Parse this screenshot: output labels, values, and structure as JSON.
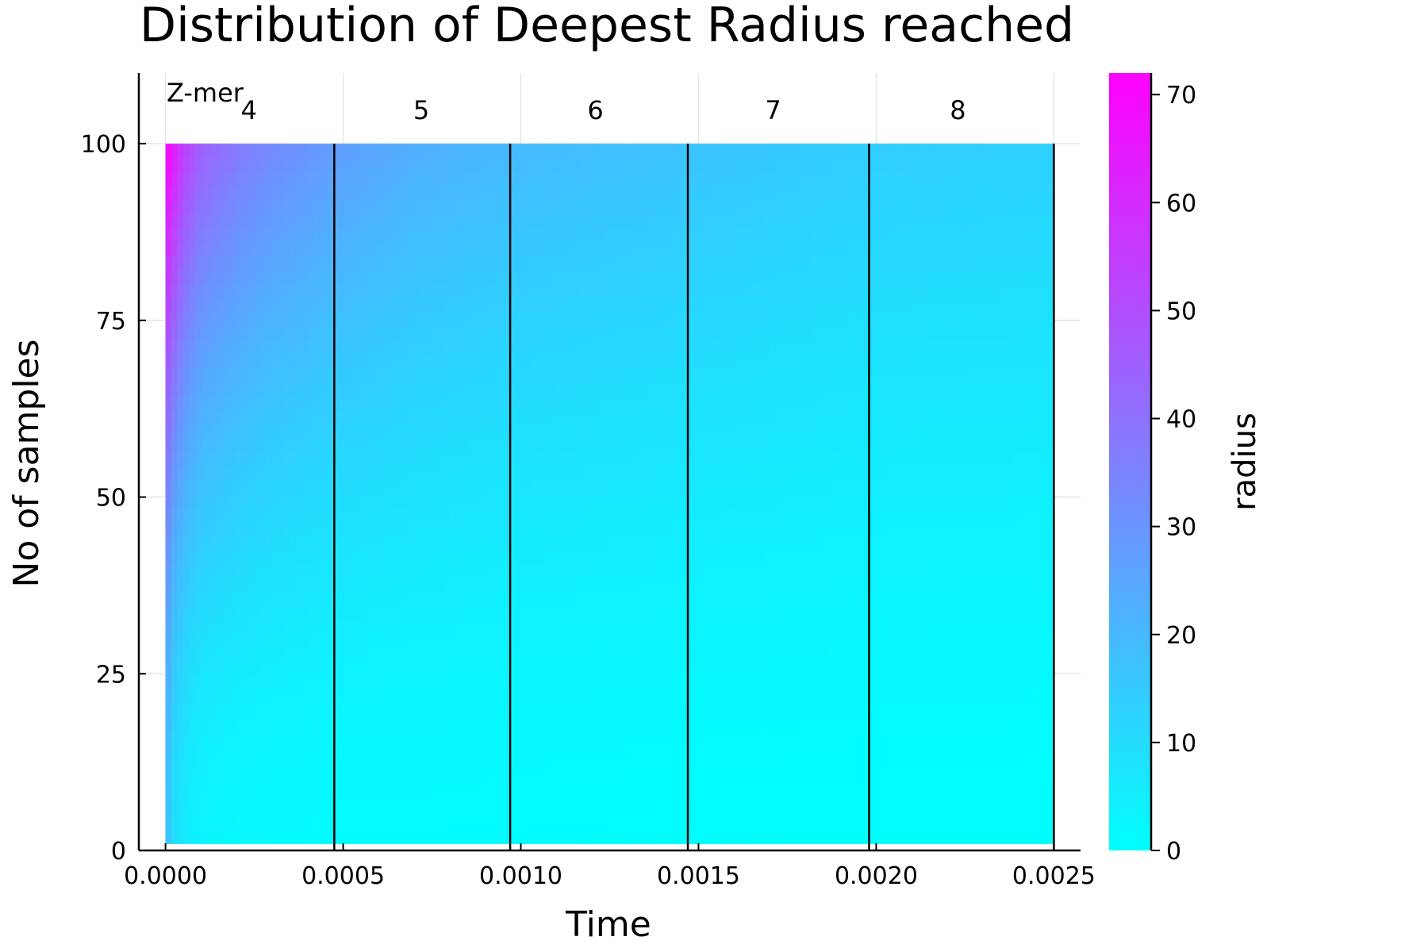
{
  "chart_data": {
    "type": "heatmap",
    "title": "Distribution of Deepest Radius reached",
    "xlabel": "Time",
    "ylabel": "No of samples",
    "xlim": [
      -7.5e-05,
      0.002575
    ],
    "ylim": [
      0,
      110
    ],
    "x_ticks": [
      0.0,
      0.0005,
      0.001,
      0.0015,
      0.002,
      0.0025
    ],
    "x_tick_labels": [
      "0.0000",
      "0.0005",
      "0.0010",
      "0.0015",
      "0.0020",
      "0.0025"
    ],
    "y_ticks": [
      0,
      25,
      50,
      75,
      100
    ],
    "y_tick_labels": [
      "0",
      "25",
      "50",
      "75",
      "100"
    ],
    "grid": true,
    "group_prefix": "Z-mer",
    "groups": [
      {
        "label": "4",
        "label_x": 0.000235,
        "start": 0.0,
        "end": 0.000475
      },
      {
        "label": "5",
        "label_x": 0.00072,
        "start": 0.000475,
        "end": 0.00097
      },
      {
        "label": "6",
        "label_x": 0.00121,
        "start": 0.00097,
        "end": 0.00147
      },
      {
        "label": "7",
        "label_x": 0.00171,
        "start": 0.00147,
        "end": 0.00198
      },
      {
        "label": "8",
        "label_x": 0.00223,
        "start": 0.00198,
        "end": 0.0025
      }
    ],
    "separators_x": [
      0.000475,
      0.00097,
      0.00147,
      0.00198,
      0.0025
    ],
    "radius_profile": {
      "description_free": true,
      "time": [
        0.0,
        2e-05,
        5e-05,
        0.0001,
        0.0002,
        0.0003,
        0.000475,
        0.0007,
        0.00097,
        0.0013,
        0.00147,
        0.0018,
        0.00198,
        0.0025
      ],
      "radius_at_bottom": [
        20,
        10,
        6,
        3,
        2,
        1.5,
        1,
        1,
        0.8,
        0.6,
        0.5,
        0.4,
        0.3,
        0.2
      ],
      "radius_at_top": [
        72,
        66,
        55,
        45,
        38,
        33,
        28,
        23,
        20,
        18,
        17,
        15,
        14,
        13
      ]
    },
    "colorbar": {
      "label": "radius",
      "min": 0,
      "max": 72,
      "ticks": [
        0,
        10,
        20,
        30,
        40,
        50,
        60,
        70
      ],
      "tick_labels": [
        "0",
        "10",
        "20",
        "30",
        "40",
        "50",
        "60",
        "70"
      ],
      "color_low": "#00ffff",
      "color_high": "#ff00ff"
    }
  }
}
